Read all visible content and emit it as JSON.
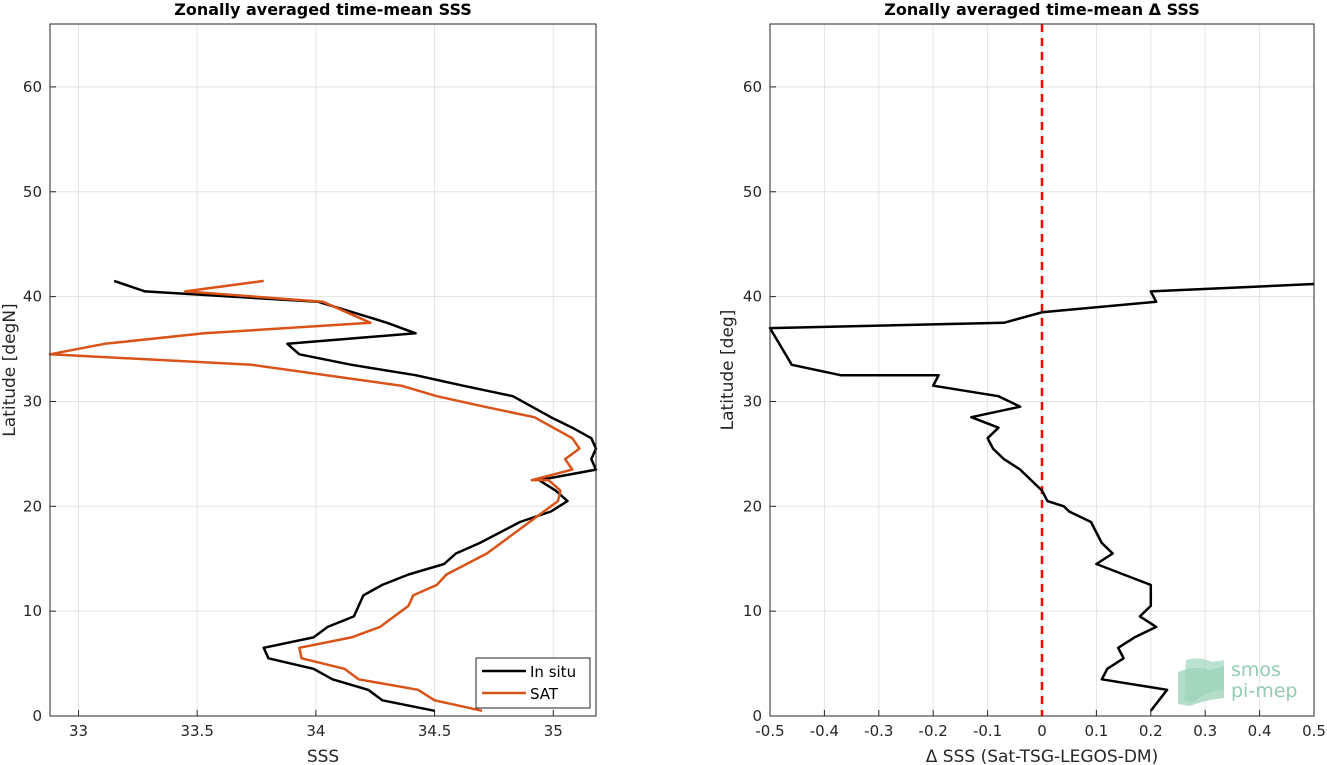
{
  "chart_data": [
    {
      "type": "line",
      "title": "Zonally averaged time-mean SSS",
      "xlabel": "SSS",
      "ylabel": "Latitude [degN]",
      "xlim": [
        32.88,
        35.18
      ],
      "ylim": [
        0,
        66
      ],
      "xticks": [
        "33",
        "33.5",
        "34",
        "34.5",
        "35"
      ],
      "yticks": [
        "0",
        "10",
        "20",
        "30",
        "40",
        "50",
        "60"
      ],
      "grid": true,
      "legend": "bottom-right",
      "series": [
        {
          "name": "In situ",
          "color": "#000000",
          "x": [
            34.5,
            34.28,
            34.22,
            34.07,
            33.99,
            33.8,
            33.78,
            33.99,
            34.05,
            34.16,
            34.2,
            34.28,
            34.39,
            34.54,
            34.59,
            34.69,
            34.86,
            34.99,
            35.06,
            35.01,
            34.94,
            35.18,
            35.16,
            35.18,
            35.16,
            35.08,
            34.99,
            34.83,
            34.62,
            34.42,
            34.15,
            33.93,
            33.88,
            34.42,
            34.3,
            34.01,
            33.28,
            33.15
          ],
          "y": [
            0.5,
            1.5,
            2.5,
            3.5,
            4.5,
            5.5,
            6.5,
            7.5,
            8.5,
            9.5,
            11.5,
            12.5,
            13.5,
            14.5,
            15.5,
            16.5,
            18.5,
            19.5,
            20.5,
            21.5,
            22.5,
            23.5,
            24.5,
            25.5,
            26.5,
            27.5,
            28.5,
            30.5,
            31.5,
            32.5,
            33.5,
            34.5,
            35.5,
            36.5,
            37.5,
            39.5,
            40.5,
            41.5
          ]
        },
        {
          "name": "SAT",
          "color": "#d95319",
          "x": [
            34.7,
            34.5,
            34.43,
            34.18,
            34.12,
            33.94,
            33.93,
            34.15,
            34.27,
            34.39,
            34.41,
            34.51,
            34.55,
            34.72,
            34.84,
            34.96,
            35.02,
            35.03,
            34.98,
            34.91,
            35.08,
            35.05,
            35.11,
            35.08,
            34.92,
            34.71,
            34.51,
            34.36,
            33.73,
            32.88,
            33.11,
            33.53,
            34.23,
            34.03,
            33.45,
            33.78
          ],
          "y": [
            0.5,
            1.5,
            2.5,
            3.5,
            4.5,
            5.5,
            6.5,
            7.5,
            8.5,
            10.5,
            11.5,
            12.5,
            13.5,
            15.5,
            17.5,
            19.5,
            20.5,
            21.5,
            22.5,
            22.5,
            23.5,
            24.5,
            25.5,
            26.5,
            28.5,
            29.5,
            30.5,
            31.5,
            33.5,
            34.5,
            35.5,
            36.5,
            37.5,
            39.5,
            40.5,
            41.5
          ]
        }
      ]
    },
    {
      "type": "line",
      "title": "Zonally averaged time-mean Δ SSS",
      "xlabel": "Δ SSS (Sat-TSG-LEGOS-DM)",
      "ylabel": "Latitude [deg]",
      "xlim": [
        -0.5,
        0.5
      ],
      "ylim": [
        0,
        66
      ],
      "xticks": [
        "-0.5",
        "-0.4",
        "-0.3",
        "-0.2",
        "-0.1",
        "0",
        "0.1",
        "0.2",
        "0.3",
        "0.4",
        "0.5"
      ],
      "yticks": [
        "0",
        "10",
        "20",
        "30",
        "40",
        "50",
        "60"
      ],
      "grid": true,
      "reference_line": {
        "x": 0,
        "color": "#ff0000",
        "style": "dashed"
      },
      "series": [
        {
          "name": "",
          "color": "#000000",
          "x": [
            0.2,
            0.23,
            0.11,
            0.12,
            0.15,
            0.14,
            0.17,
            0.21,
            0.18,
            0.2,
            0.2,
            0.15,
            0.1,
            0.13,
            0.11,
            0.09,
            0.05,
            0.04,
            0.01,
            0.0,
            -0.02,
            -0.04,
            -0.07,
            -0.09,
            -0.1,
            -0.08,
            -0.08,
            -0.13,
            -0.04,
            -0.08,
            -0.2,
            -0.19,
            -0.37,
            -0.46,
            -0.5,
            -0.07,
            0.0,
            0.21,
            0.2,
            0.5
          ],
          "y": [
            0.5,
            2.5,
            3.5,
            4.5,
            5.5,
            6.5,
            7.5,
            8.5,
            9.5,
            10.5,
            12.5,
            13.5,
            14.5,
            15.5,
            16.5,
            18.5,
            19.5,
            20.0,
            20.5,
            21.5,
            22.5,
            23.5,
            24.5,
            25.5,
            26.5,
            27.5,
            27.5,
            28.5,
            29.5,
            30.5,
            31.5,
            32.5,
            32.5,
            33.5,
            37.0,
            37.5,
            38.5,
            39.5,
            40.5,
            41.2
          ]
        }
      ]
    }
  ],
  "legend": {
    "items": [
      "In situ",
      "SAT"
    ]
  },
  "logo": {
    "line1": "smos",
    "line2": "pi-mep"
  }
}
